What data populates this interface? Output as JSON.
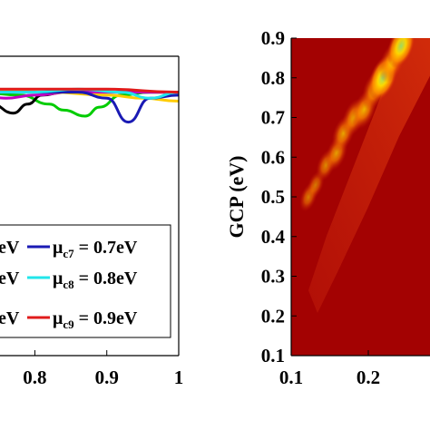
{
  "chart_data": [
    {
      "type": "line",
      "panel": "left",
      "x_tick_labels": [
        "0.8",
        "0.9",
        "1"
      ],
      "xlim": [
        0.72,
        1.0
      ],
      "ylim": [
        0.0,
        1.0
      ],
      "series": [
        {
          "name_prefix": "eV",
          "name": "μc7 = 0.7eV",
          "sym": "μ",
          "sub": "c7",
          "rest": " = 0.7eV",
          "color": "#1a1ab4",
          "x": [
            0.72,
            0.8,
            0.86,
            0.9,
            0.93,
            0.96,
            1.0
          ],
          "y": [
            0.88,
            0.88,
            0.88,
            0.86,
            0.78,
            0.86,
            0.87
          ]
        },
        {
          "name_prefix": "eV",
          "name": "μc8 = 0.8eV",
          "sym": "μ",
          "sub": "c8",
          "rest": " = 0.8eV",
          "color": "#21e6ea",
          "x": [
            0.72,
            0.8,
            0.86,
            0.92,
            0.96,
            1.0
          ],
          "y": [
            0.88,
            0.88,
            0.89,
            0.88,
            0.86,
            0.88
          ]
        },
        {
          "name_prefix": "eV",
          "name": "μc9 = 0.9eV",
          "sym": "μ",
          "sub": "c9",
          "rest": " = 0.9eV",
          "color": "#e01b1b",
          "x": [
            0.72,
            0.8,
            0.9,
            1.0
          ],
          "y": [
            0.89,
            0.89,
            0.89,
            0.88
          ]
        }
      ],
      "unlabeled_series": [
        {
          "color": "#00cc00",
          "x": [
            0.72,
            0.78,
            0.82,
            0.84,
            0.87,
            0.89,
            0.92,
            0.96,
            1.0
          ],
          "y": [
            0.88,
            0.87,
            0.84,
            0.82,
            0.8,
            0.83,
            0.87,
            0.88,
            0.88
          ]
        },
        {
          "color": "#000000",
          "x": [
            0.72,
            0.74,
            0.77,
            0.79,
            0.81,
            0.84,
            0.9,
            1.0
          ],
          "y": [
            0.88,
            0.84,
            0.81,
            0.84,
            0.87,
            0.88,
            0.88,
            0.88
          ]
        },
        {
          "color": "#c000c0",
          "x": [
            0.72,
            0.76,
            0.8,
            0.85,
            0.9,
            1.0
          ],
          "y": [
            0.87,
            0.86,
            0.87,
            0.88,
            0.88,
            0.88
          ]
        },
        {
          "color": "#ffcc00",
          "x": [
            0.72,
            0.82,
            0.9,
            0.95,
            1.0
          ],
          "y": [
            0.89,
            0.88,
            0.87,
            0.86,
            0.85
          ]
        }
      ],
      "grid": false
    },
    {
      "type": "heatmap",
      "panel": "right",
      "ylabel": "GCP (eV)",
      "x_tick_labels": [
        "0.1",
        "0.2"
      ],
      "y_tick_labels": [
        "0.1",
        "0.2",
        "0.3",
        "0.4",
        "0.5",
        "0.6",
        "0.7",
        "0.8",
        "0.9"
      ],
      "xlim": [
        0.1,
        0.3
      ],
      "ylim": [
        0.1,
        0.9
      ],
      "colors": {
        "background": "#a00000",
        "mid": "#e23010",
        "hot": "#ff9a00",
        "hotter": "#ffe000",
        "peak": "#9be86a"
      },
      "hotspots": [
        {
          "x": 0.125,
          "y": 0.5,
          "level": 0.35
        },
        {
          "x": 0.135,
          "y": 0.53,
          "level": 0.3
        },
        {
          "x": 0.15,
          "y": 0.58,
          "level": 0.45
        },
        {
          "x": 0.165,
          "y": 0.61,
          "level": 0.6
        },
        {
          "x": 0.175,
          "y": 0.66,
          "level": 0.65
        },
        {
          "x": 0.19,
          "y": 0.7,
          "level": 0.7
        },
        {
          "x": 0.205,
          "y": 0.72,
          "level": 0.75
        },
        {
          "x": 0.22,
          "y": 0.77,
          "level": 0.8
        },
        {
          "x": 0.232,
          "y": 0.8,
          "level": 1.0
        },
        {
          "x": 0.245,
          "y": 0.84,
          "level": 0.85
        },
        {
          "x": 0.258,
          "y": 0.88,
          "level": 0.95
        }
      ]
    }
  ]
}
